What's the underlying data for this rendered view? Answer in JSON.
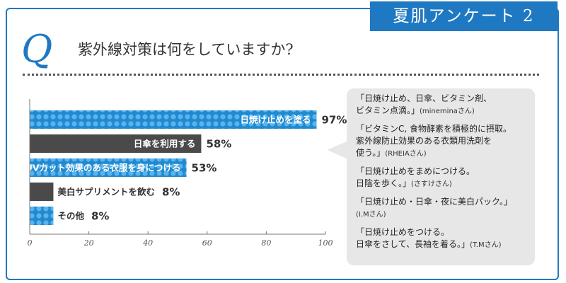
{
  "header": {
    "tag": "夏肌アンケート 2",
    "q_letter": "Q",
    "question": "紫外線対策は何をしていますか?"
  },
  "chart_data": {
    "type": "bar",
    "orientation": "horizontal",
    "categories": [
      "日焼け止めを塗る",
      "日傘を利用する",
      "UVカット効果のある衣服を身につける",
      "美白サプリメントを飲む",
      "その他"
    ],
    "values": [
      97,
      58,
      53,
      8,
      8
    ],
    "value_labels": [
      "97%",
      "58%",
      "53%",
      "8%",
      "8%"
    ],
    "xlim": [
      0,
      100
    ],
    "xticks": [
      0,
      20,
      40,
      60,
      80,
      100
    ],
    "colors": {
      "blue": "#1f8ad1",
      "dark": "#4a4a4a",
      "dot": "#5cb3eb",
      "axis": "#777777",
      "text": "#333333"
    },
    "bar_styles": [
      "blue",
      "dark",
      "blue",
      "dark",
      "blue"
    ]
  },
  "comments": [
    {
      "lines": [
        "「日焼け止め、日傘、ビタミン剤、",
        "ビタミン点滴。」"
      ],
      "author": "(mineminaさん)"
    },
    {
      "lines": [
        "「ビタミンC, 食物酵素を積極的に摂取。",
        "紫外線防止効果のある衣類用洗剤を",
        "使う。」"
      ],
      "author": "(RHEIAさん)"
    },
    {
      "lines": [
        "「日焼け止めをまめにつける。",
        "日陰を歩く。」"
      ],
      "author": "(さすけさん)"
    },
    {
      "lines": [
        "「日焼け止め・日傘・夜に美白パック。」",
        ""
      ],
      "author": "(I.Mさん)"
    },
    {
      "lines": [
        "「日焼け止めをつける。",
        "日傘をさして、長袖を着る。」"
      ],
      "author": "(T.Mさん)"
    }
  ]
}
